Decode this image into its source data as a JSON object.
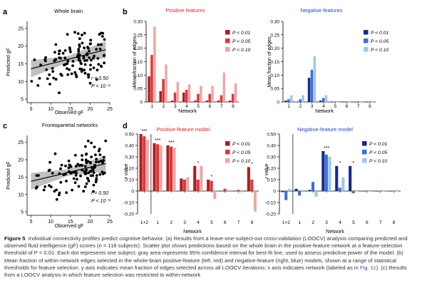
{
  "panels": {
    "a": {
      "letter": "a",
      "title": "Whole brain",
      "xlabel": "Observed gF",
      "ylabel": "Predicted gF",
      "r_text": "r = 0.50",
      "p_text": "P < 10⁻⁹",
      "x_ticks": [
        5,
        10,
        15,
        20,
        25
      ],
      "y_ticks": [
        5,
        10,
        15,
        20,
        25
      ]
    },
    "b": {
      "letter": "b",
      "pos_title": "Positive features",
      "neg_title": "Negative features",
      "ylabel": "Mean fraction of edges",
      "xlabel": "Network",
      "y_ticks": [
        "0",
        "0.05",
        "0.10",
        "0.15",
        "0.20",
        "0.25",
        "0.30"
      ],
      "x_ticks": [
        "1",
        "2",
        "3",
        "4",
        "5",
        "6",
        "7",
        "8"
      ]
    },
    "c": {
      "letter": "c",
      "title": "Frontoparietal networks",
      "xlabel": "Observed gF",
      "ylabel": "Predicted gF",
      "r_text": "r = 0.50",
      "p_text": "P < 10⁻⁹",
      "x_ticks": [
        5,
        10,
        15,
        20,
        25
      ],
      "y_ticks": [
        5,
        10,
        15,
        20,
        25
      ]
    },
    "d": {
      "letter": "d",
      "pos_title": "Positive-feature model",
      "neg_title": "Negative-feature model",
      "ylabel": "r value",
      "xlabel": "Network",
      "y_ticks": [
        "-0.20",
        "-0.10",
        "0",
        "0.10",
        "0.20",
        "0.30",
        "0.40",
        "0.50"
      ],
      "x_ticks": [
        "1+2",
        "1",
        "2",
        "3",
        "4",
        "5",
        "6",
        "7",
        "8"
      ]
    }
  },
  "legend": [
    "P < 0.01",
    "P < 0.05",
    "P < 0.10"
  ],
  "colors": {
    "pos": [
      "#b01c1c",
      "#e0343a",
      "#f1a5a5"
    ],
    "neg": [
      "#17288f",
      "#3a6fd8",
      "#9cc7ee"
    ],
    "title_pos": "#e02222",
    "title_neg": "#2244cc",
    "ci_band": "#b5b5b5"
  },
  "chart_data": [
    {
      "id": "a",
      "type": "scatter",
      "title": "Whole brain",
      "xlabel": "Observed gF",
      "ylabel": "Predicted gF",
      "xlim": [
        4,
        25
      ],
      "ylim": [
        4,
        27
      ],
      "fit_line": {
        "x": [
          5,
          24
        ],
        "y": [
          13.6,
          19.0
        ]
      },
      "r": 0.5,
      "p": "P < 10^-9",
      "n": 118
    },
    {
      "id": "b-pos",
      "type": "bar",
      "title": "Positive features",
      "xlabel": "Network",
      "ylabel": "Mean fraction of edges",
      "ylim": [
        0,
        0.3
      ],
      "categories": [
        "1",
        "2",
        "3",
        "4",
        "5",
        "6",
        "7",
        "8"
      ],
      "series": [
        {
          "name": "P < 0.01",
          "values": [
            0.095,
            0.04,
            0.005,
            0.035,
            0.005,
            0.005,
            0.005,
            0.005
          ]
        },
        {
          "name": "P < 0.05",
          "values": [
            0.175,
            0.085,
            0.035,
            0.045,
            0.03,
            0.03,
            0.025,
            0.03
          ]
        },
        {
          "name": "P < 0.10",
          "values": [
            0.28,
            0.14,
            0.075,
            0.065,
            0.06,
            0.06,
            0.11,
            0.07
          ]
        }
      ]
    },
    {
      "id": "b-neg",
      "type": "bar",
      "title": "Negative features",
      "xlabel": "Network",
      "ylabel": "Mean fraction of edges",
      "ylim": [
        0,
        0.3
      ],
      "categories": [
        "1",
        "2",
        "3",
        "4",
        "5",
        "6",
        "7",
        "8"
      ],
      "series": [
        {
          "name": "P < 0.01",
          "values": [
            0.005,
            0.0,
            0.09,
            0.005,
            0.0,
            0.0,
            0.0,
            0.0
          ]
        },
        {
          "name": "P < 0.05",
          "values": [
            0.01,
            0.01,
            0.12,
            0.015,
            0.0,
            0.0,
            0.0,
            0.0
          ]
        },
        {
          "name": "P < 0.10",
          "values": [
            0.025,
            0.025,
            0.17,
            0.025,
            0.0,
            0.0,
            0.0,
            0.0
          ]
        }
      ]
    },
    {
      "id": "c",
      "type": "scatter",
      "title": "Frontoparietal networks",
      "xlabel": "Observed gF",
      "ylabel": "Predicted gF",
      "xlim": [
        4,
        25
      ],
      "ylim": [
        4,
        27
      ],
      "fit_line": {
        "x": [
          5,
          24
        ],
        "y": [
          13.8,
          18.9
        ]
      },
      "r": 0.5,
      "p": "P < 10^-9",
      "n": 118
    },
    {
      "id": "d-pos",
      "type": "bar",
      "title": "Positive-feature model",
      "xlabel": "Network",
      "ylabel": "r value",
      "ylim": [
        -0.2,
        0.5
      ],
      "categories": [
        "1+2",
        "1",
        "2",
        "3",
        "4",
        "5",
        "6",
        "7",
        "8"
      ],
      "series": [
        {
          "name": "P < 0.01",
          "values": [
            0.5,
            0.42,
            0.4,
            0.11,
            0.22,
            0.1,
            0.0,
            0.0,
            0.21
          ]
        },
        {
          "name": "P < 0.05",
          "values": [
            0.48,
            0.41,
            0.39,
            0.1,
            0.1,
            0.09,
            0.02,
            0.01,
            0.1
          ]
        },
        {
          "name": "P < 0.10",
          "values": [
            0.45,
            0.4,
            0.38,
            0.12,
            0.22,
            -0.07,
            0.01,
            -0.01,
            -0.18
          ]
        }
      ],
      "significance": [
        "***",
        "***",
        "***",
        "",
        "*",
        "*",
        "",
        "",
        "*"
      ]
    },
    {
      "id": "d-neg",
      "type": "bar",
      "title": "Negative-feature model",
      "xlabel": "Network",
      "ylabel": "r value",
      "ylim": [
        -0.2,
        0.5
      ],
      "categories": [
        "1+2",
        "1",
        "2",
        "3",
        "4",
        "5",
        "6",
        "7",
        "8"
      ],
      "series": [
        {
          "name": "P < 0.01",
          "values": [
            -0.01,
            0.02,
            0.01,
            0.35,
            0.22,
            0.22,
            0.0,
            0.0,
            0.0
          ]
        },
        {
          "name": "P < 0.05",
          "values": [
            -0.08,
            -0.04,
            0.08,
            0.32,
            0.03,
            -0.02,
            0.0,
            0.0,
            0.0
          ]
        },
        {
          "name": "P < 0.10",
          "values": [
            0.02,
            0.01,
            -0.05,
            0.3,
            0.12,
            0.0,
            0.0,
            0.0,
            0.0
          ]
        }
      ],
      "significance": [
        "",
        "",
        "",
        "***",
        "*",
        "*",
        "",
        "",
        ""
      ]
    }
  ],
  "caption": {
    "label": "Figure 5",
    "text_1": "Individual connectivity profiles predict cognitive behavior. (a) Results from a leave-one-subject-out cross-validation (LOOCV) analysis comparing predicted and observed fluid intelligence (gF) scores (n = 118 subjects). Scatter plot shows predictions based on the whole brain in the positive-feature network at a feature-selection threshold of P < 0.01. Each dot represents one subject; gray area represents 95% confidence interval for best-fit line, used to assess predictive power of the model. (b) Mean fraction of within-network edges selected in the whole-brain positive-feature (left, red) and negative-feature (right, blue) models, shown at a range of statistical thresholds for feature selection. y axis indicates mean fraction of edges selected across all LOOCV iterations; x axis indicates network (labeled as in ",
    "link": "Fig. 1c",
    "text_2": "). (c) Results from a LOOCV analysis in which feature selection was restricted to within-network"
  }
}
